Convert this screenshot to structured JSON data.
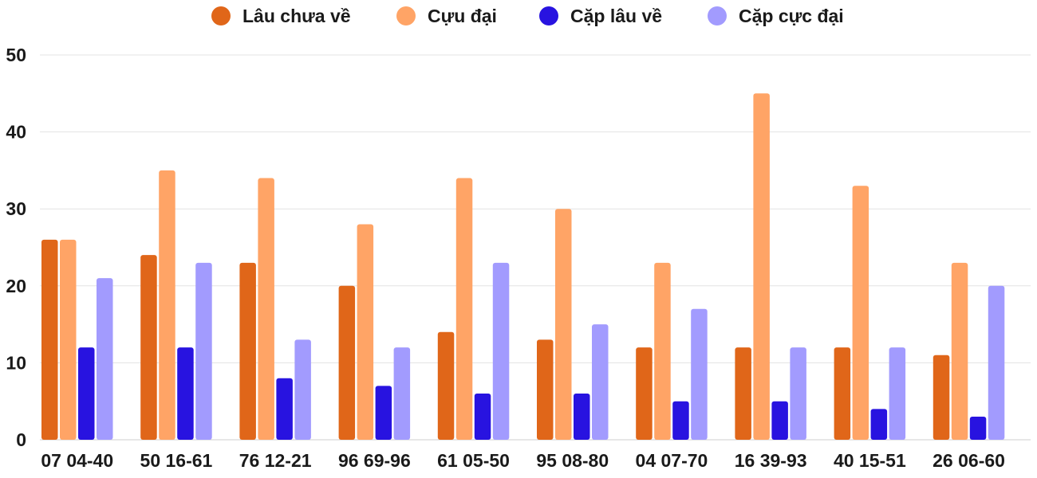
{
  "chart_data": {
    "type": "bar",
    "title": "",
    "xlabel": "",
    "ylabel": "",
    "ylim": [
      0,
      50
    ],
    "yticks": [
      0,
      10,
      20,
      30,
      40,
      50
    ],
    "grid": true,
    "legend_position": "top-center",
    "categories": [
      "07 04-40",
      "50 16-61",
      "76 12-21",
      "96 69-96",
      "61 05-50",
      "95 08-80",
      "04 07-70",
      "16 39-93",
      "40 15-51",
      "26 06-60"
    ],
    "series": [
      {
        "name": "Lâu chưa về",
        "color": "#e06619",
        "values": [
          26,
          24,
          23,
          20,
          14,
          13,
          12,
          12,
          12,
          11
        ]
      },
      {
        "name": "Cựu đại",
        "color": "#ffa466",
        "values": [
          26,
          35,
          34,
          28,
          34,
          30,
          23,
          45,
          33,
          23
        ]
      },
      {
        "name": "Cặp lâu về",
        "color": "#2813e0",
        "values": [
          12,
          12,
          8,
          7,
          6,
          6,
          5,
          5,
          4,
          3
        ]
      },
      {
        "name": "Cặp cực đại",
        "color": "#a29bfe",
        "values": [
          21,
          23,
          13,
          12,
          23,
          15,
          17,
          12,
          12,
          20
        ]
      }
    ]
  }
}
